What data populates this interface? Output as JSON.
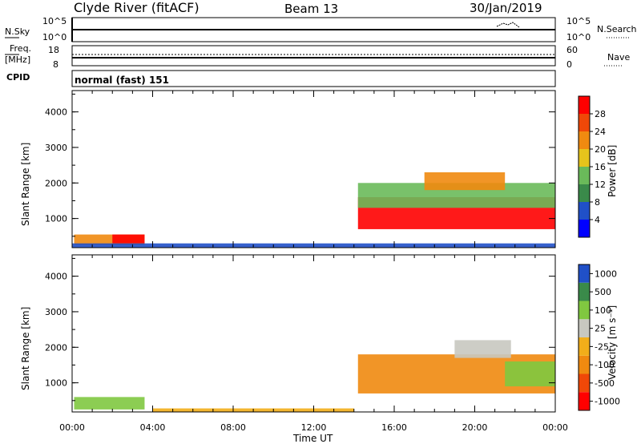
{
  "header": {
    "station": "Clyde River (fitACF)",
    "beam": "Beam 13",
    "date": "30/Jan/2019"
  },
  "panels": {
    "nsky": {
      "left_label": "N.Sky",
      "left_ticks": [
        "10^5",
        "10^0"
      ],
      "right_ticks": [
        "10^5",
        "10^0"
      ],
      "right_label": "N.Search"
    },
    "freq": {
      "left_label_1": "Freq.",
      "left_label_2": "[MHz]",
      "left_ticks": [
        "18",
        "8"
      ],
      "right_ticks": [
        "60",
        "0"
      ],
      "right_label": "Nave"
    },
    "cpid": {
      "label": "CPID",
      "value": "normal (fast) 151"
    }
  },
  "colors": {
    "power_scale": [
      "#0000ff",
      "#2050c8",
      "#3a8a4a",
      "#6aba5a",
      "#e6c41c",
      "#f08a10",
      "#f04808",
      "#ff0000"
    ],
    "velocity_scale": [
      "#ff0000",
      "#f04808",
      "#f08a10",
      "#f2ae1a",
      "#c8c8c0",
      "#80c840",
      "#3a8a4a",
      "#2050c8"
    ]
  },
  "chart_data": [
    {
      "type": "heatmap",
      "name": "power",
      "ylabel": "Slant Range [km]",
      "yticks": [
        "1000",
        "2000",
        "3000",
        "4000"
      ],
      "ylim": [
        180,
        4600
      ],
      "xlim": [
        0,
        24
      ],
      "colorbar": {
        "label": "Power [dB]",
        "ticks": [
          "4",
          "8",
          "12",
          "16",
          "20",
          "24",
          "28"
        ],
        "range": [
          0,
          32
        ]
      },
      "regions": [
        {
          "t0": 0.1,
          "t1": 3.6,
          "r0": 250,
          "r1": 550,
          "level": 22
        },
        {
          "t0": 2.0,
          "t1": 3.6,
          "r0": 300,
          "r1": 550,
          "level": 28
        },
        {
          "t0": 14.2,
          "t1": 24.0,
          "r0": 700,
          "r1": 1600,
          "level": 28
        },
        {
          "t0": 14.2,
          "t1": 24.0,
          "r0": 1300,
          "r1": 2000,
          "level": 12
        },
        {
          "t0": 17.5,
          "t1": 21.5,
          "r0": 1800,
          "r1": 2300,
          "level": 20
        },
        {
          "t0": 0.0,
          "t1": 24.0,
          "r0": 180,
          "r1": 300,
          "level": 6
        }
      ]
    },
    {
      "type": "heatmap",
      "name": "velocity",
      "ylabel": "Slant Range [km]",
      "yticks": [
        "1000",
        "2000",
        "3000",
        "4000"
      ],
      "ylim": [
        180,
        4600
      ],
      "xlim": [
        0,
        24
      ],
      "xticks": [
        "00:00",
        "04:00",
        "08:00",
        "12:00",
        "16:00",
        "20:00",
        "00:00"
      ],
      "xlabel": "Time UT",
      "colorbar": {
        "label": "Velocity [m s⁻¹]",
        "ticks": [
          "-1000",
          "-500",
          "-100",
          "-25",
          "25",
          "100",
          "500",
          "1000"
        ]
      },
      "regions": [
        {
          "t0": 0.1,
          "t1": 3.6,
          "r0": 250,
          "r1": 600,
          "level": "100"
        },
        {
          "t0": 14.2,
          "t1": 24.0,
          "r0": 700,
          "r1": 1800,
          "level": "-100"
        },
        {
          "t0": 19.0,
          "t1": 21.8,
          "r0": 1700,
          "r1": 2200,
          "level": "25"
        },
        {
          "t0": 21.5,
          "t1": 24.0,
          "r0": 900,
          "r1": 1600,
          "level": "100"
        },
        {
          "t0": 4.0,
          "t1": 14.0,
          "r0": 180,
          "r1": 280,
          "level": "-25"
        }
      ]
    }
  ]
}
